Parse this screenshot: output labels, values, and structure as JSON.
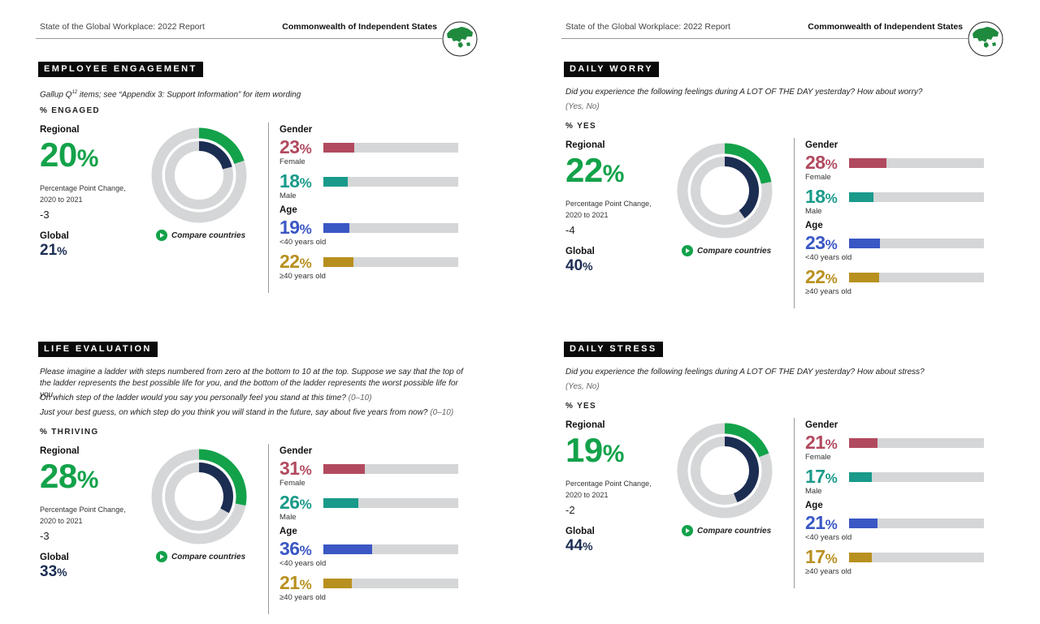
{
  "header": {
    "report_title": "State of the Global Workplace: 2022 Report",
    "region": "Commonwealth of Independent States",
    "globe_icon": "globe-eurasia-icon"
  },
  "colors": {
    "regional": "#13a24a",
    "navy": "#1c2d52",
    "female": "#b14a5f",
    "male": "#1a9a8a",
    "under40": "#3a57c4",
    "over40": "#b8901f",
    "track": "#d4d6d7"
  },
  "common": {
    "regional_label": "Regional",
    "ppc_label_line1": "Percentage Point Change,",
    "ppc_label_line2": "2020 to 2021",
    "global_label": "Global",
    "compare_label": "Compare countries",
    "gender_label": "Gender",
    "age_label": "Age",
    "female_label": "Female",
    "male_label": "Male",
    "under40_label": "<40 years old",
    "over40_label": "≥40 years old",
    "pct": "%"
  },
  "sections": {
    "engagement": {
      "tag": "EMPLOYEE ENGAGEMENT",
      "question_pre": "Gallup Q",
      "question_sup": "12",
      "question_post": " items; see “Appendix 3: Support Information” for item wording",
      "unit": "% ENGAGED",
      "regional": "20",
      "change": "-3",
      "global": "21",
      "female": "23",
      "male": "18",
      "under40": "19",
      "over40": "22",
      "donut": {
        "regional": 20,
        "global": 21
      }
    },
    "life": {
      "tag": "LIFE EVALUATION",
      "question_p1": "Please imagine a ladder with steps numbered from zero at the bottom to 10 at the top. Suppose we say that the top of the ladder represents the best possible life for you, and the bottom of the ladder represents the worst possible life for you.",
      "question_p2": "On which step of the ladder would you say you personally feel you stand at this time?",
      "question_p2_range": "(0–10)",
      "question_p3": "Just your best guess, on which step do you think you will stand in the future, say about five years from now?",
      "question_p3_range": "(0–10)",
      "unit": "% THRIVING",
      "regional": "28",
      "change": "-3",
      "global": "33",
      "female": "31",
      "male": "26",
      "under40": "36",
      "over40": "21",
      "donut": {
        "regional": 28,
        "global": 33
      }
    },
    "worry": {
      "tag": "DAILY WORRY",
      "question": "Did you experience the following feelings during A LOT OF THE DAY yesterday? How about worry?",
      "answers": "(Yes, No)",
      "unit": "% YES",
      "regional": "22",
      "change": "-4",
      "global": "40",
      "female": "28",
      "male": "18",
      "under40": "23",
      "over40": "22",
      "donut": {
        "regional": 22,
        "global": 40
      }
    },
    "stress": {
      "tag": "DAILY STRESS",
      "question": "Did you experience the following feelings during A LOT OF THE DAY yesterday? How about stress?",
      "answers": "(Yes, No)",
      "unit": "% YES",
      "regional": "19",
      "change": "-2",
      "global": "44",
      "female": "21",
      "male": "17",
      "under40": "21",
      "over40": "17",
      "donut": {
        "regional": 19,
        "global": 44
      }
    }
  }
}
